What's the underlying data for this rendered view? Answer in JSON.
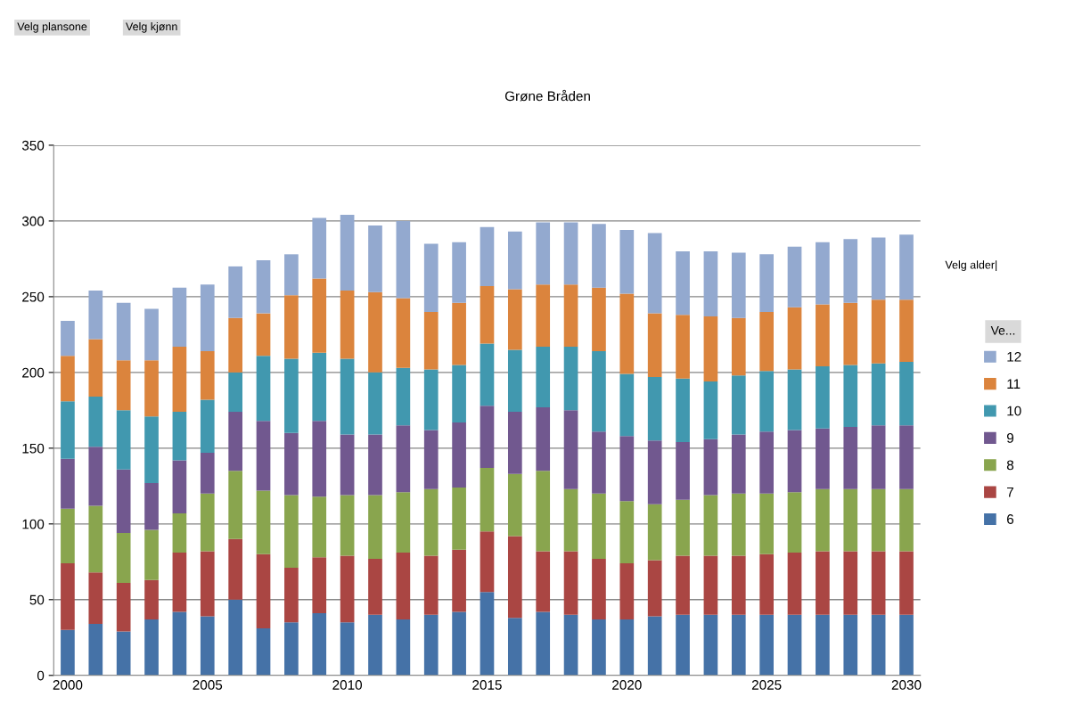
{
  "chart_data": {
    "type": "bar",
    "title": "Grøne Bråden",
    "stacked": true,
    "categories": [
      "2000",
      null,
      null,
      null,
      null,
      "2005",
      null,
      null,
      null,
      null,
      "2010",
      null,
      null,
      null,
      null,
      "2015",
      null,
      null,
      null,
      null,
      "2020",
      null,
      null,
      null,
      null,
      "2025",
      null,
      null,
      null,
      null,
      "2030"
    ],
    "series": [
      {
        "name": "6",
        "color": "#4572a7",
        "values": [
          30,
          34,
          29,
          37,
          42,
          39,
          50,
          31,
          35,
          41,
          35,
          40,
          37,
          40,
          42,
          55,
          38,
          42,
          40,
          37,
          37,
          39,
          40,
          40,
          40,
          40,
          40,
          40,
          40,
          40,
          40
        ]
      },
      {
        "name": "7",
        "color": "#aa4643",
        "values": [
          44,
          34,
          32,
          26,
          39,
          43,
          40,
          49,
          36,
          37,
          44,
          37,
          44,
          39,
          41,
          40,
          54,
          40,
          42,
          40,
          37,
          37,
          39,
          39,
          39,
          40,
          41,
          42,
          42,
          42,
          42
        ]
      },
      {
        "name": "8",
        "color": "#89a54e",
        "values": [
          36,
          44,
          33,
          33,
          26,
          38,
          45,
          42,
          48,
          40,
          40,
          42,
          40,
          44,
          41,
          42,
          41,
          53,
          41,
          43,
          41,
          37,
          37,
          40,
          41,
          40,
          40,
          41,
          41,
          41,
          41
        ]
      },
      {
        "name": "9",
        "color": "#71588f",
        "values": [
          33,
          39,
          42,
          31,
          35,
          27,
          39,
          46,
          41,
          50,
          40,
          40,
          44,
          39,
          43,
          41,
          41,
          42,
          52,
          41,
          43,
          42,
          38,
          37,
          39,
          41,
          41,
          40,
          41,
          42,
          42
        ]
      },
      {
        "name": "10",
        "color": "#4198af",
        "values": [
          38,
          33,
          39,
          44,
          32,
          35,
          26,
          43,
          49,
          45,
          50,
          41,
          38,
          40,
          38,
          41,
          41,
          40,
          42,
          53,
          41,
          42,
          42,
          38,
          39,
          40,
          40,
          41,
          41,
          41,
          42
        ]
      },
      {
        "name": "11",
        "color": "#db843d",
        "values": [
          30,
          38,
          33,
          37,
          43,
          32,
          36,
          28,
          42,
          49,
          45,
          53,
          46,
          38,
          41,
          38,
          40,
          41,
          41,
          42,
          53,
          42,
          42,
          43,
          38,
          39,
          41,
          41,
          41,
          42,
          41
        ]
      },
      {
        "name": "12",
        "color": "#93a9cf",
        "values": [
          23,
          32,
          38,
          34,
          39,
          44,
          34,
          35,
          27,
          40,
          50,
          44,
          51,
          45,
          40,
          39,
          38,
          41,
          41,
          42,
          42,
          53,
          42,
          43,
          43,
          38,
          40,
          41,
          42,
          41,
          43
        ]
      }
    ],
    "ylim": [
      0,
      350
    ],
    "yticks": [
      0,
      50,
      100,
      150,
      200,
      250,
      300,
      350
    ],
    "grid": "y",
    "legend": "right",
    "legend_title": "Ve...",
    "annotations": [
      "Velg plansone",
      "Velg kjønn",
      "Velg alder|"
    ]
  }
}
